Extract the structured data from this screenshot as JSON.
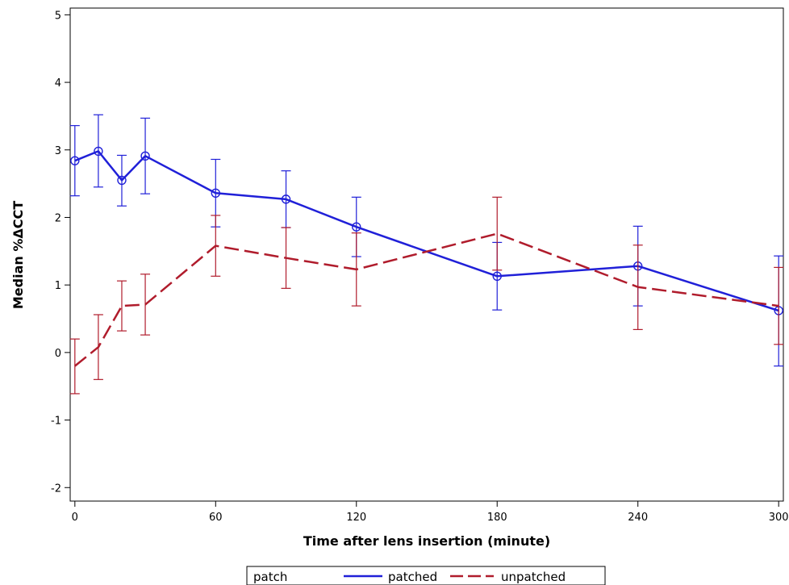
{
  "chart_data": {
    "type": "line",
    "xlabel": "Time after lens insertion (minute)",
    "ylabel": "Median %ΔCCT",
    "xlim": [
      -2,
      302
    ],
    "ylim": [
      -2.2,
      5.1
    ],
    "xticks": [
      0,
      60,
      120,
      180,
      240,
      300
    ],
    "yticks": [
      -2,
      -1,
      0,
      1,
      2,
      3,
      4,
      5
    ],
    "grid": false,
    "legend": {
      "title": "patch",
      "position": "bottom-center",
      "entries": [
        "patched",
        "unpatched"
      ]
    },
    "series": [
      {
        "name": "patched",
        "color": "#2020d8",
        "dash": "solid",
        "marker": "circle",
        "points": [
          {
            "x": 0,
            "y": 2.84,
            "lo": 2.32,
            "hi": 3.36
          },
          {
            "x": 10,
            "y": 2.98,
            "lo": 2.45,
            "hi": 3.52
          },
          {
            "x": 20,
            "y": 2.55,
            "lo": 2.17,
            "hi": 2.92
          },
          {
            "x": 30,
            "y": 2.91,
            "lo": 2.35,
            "hi": 3.47
          },
          {
            "x": 60,
            "y": 2.36,
            "lo": 1.86,
            "hi": 2.86
          },
          {
            "x": 90,
            "y": 2.27,
            "lo": 1.85,
            "hi": 2.69
          },
          {
            "x": 120,
            "y": 1.86,
            "lo": 1.42,
            "hi": 2.3
          },
          {
            "x": 180,
            "y": 1.13,
            "lo": 0.63,
            "hi": 1.63
          },
          {
            "x": 240,
            "y": 1.28,
            "lo": 0.69,
            "hi": 1.87
          },
          {
            "x": 300,
            "y": 0.62,
            "lo": -0.2,
            "hi": 1.43
          }
        ]
      },
      {
        "name": "unpatched",
        "color": "#b01c2c",
        "dash": "dashed",
        "marker": "none",
        "points": [
          {
            "x": 0,
            "y": -0.2,
            "lo": -0.61,
            "hi": 0.2
          },
          {
            "x": 10,
            "y": 0.08,
            "lo": -0.4,
            "hi": 0.56
          },
          {
            "x": 20,
            "y": 0.69,
            "lo": 0.32,
            "hi": 1.06
          },
          {
            "x": 30,
            "y": 0.71,
            "lo": 0.26,
            "hi": 1.16
          },
          {
            "x": 60,
            "y": 1.58,
            "lo": 1.13,
            "hi": 2.03
          },
          {
            "x": 90,
            "y": 1.4,
            "lo": 0.95,
            "hi": 1.85
          },
          {
            "x": 120,
            "y": 1.23,
            "lo": 0.69,
            "hi": 1.77
          },
          {
            "x": 180,
            "y": 1.76,
            "lo": 1.22,
            "hi": 2.3
          },
          {
            "x": 240,
            "y": 0.97,
            "lo": 0.34,
            "hi": 1.59
          },
          {
            "x": 300,
            "y": 0.69,
            "lo": 0.12,
            "hi": 1.26
          }
        ]
      }
    ]
  }
}
